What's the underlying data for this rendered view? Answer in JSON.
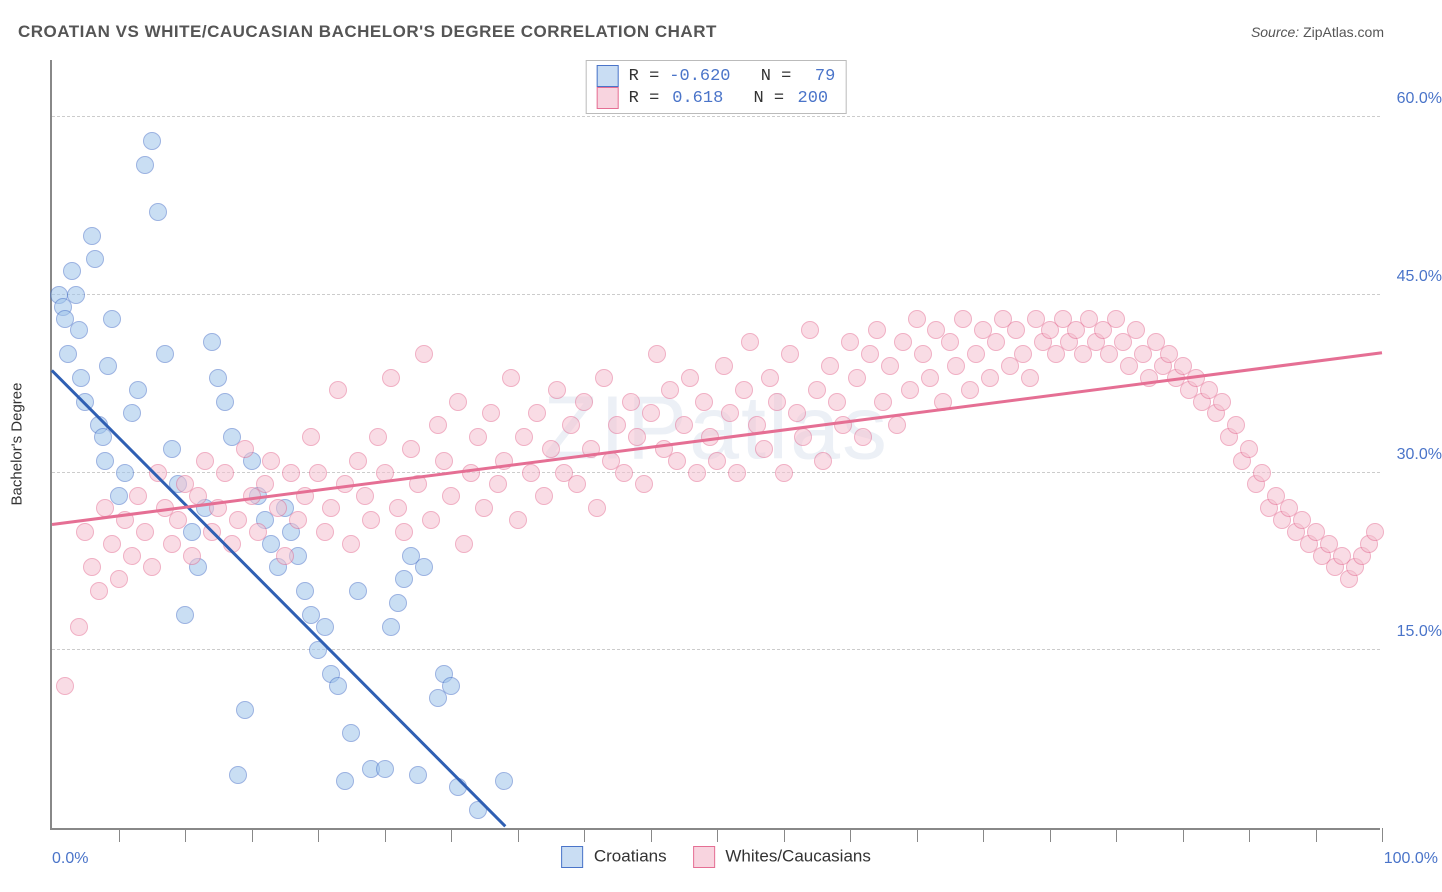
{
  "title": "CROATIAN VS WHITE/CAUCASIAN BACHELOR'S DEGREE CORRELATION CHART",
  "source_label": "Source:",
  "source_link": "ZipAtlas.com",
  "watermark": "ZIPatlas",
  "chart": {
    "type": "scatter",
    "ylabel": "Bachelor's Degree",
    "xlim": [
      0,
      100
    ],
    "ylim": [
      0,
      65
    ],
    "x_min_label": "0.0%",
    "x_max_label": "100.0%",
    "y_ticks": [
      15,
      30,
      45,
      60
    ],
    "y_tick_labels": [
      "15.0%",
      "30.0%",
      "45.0%",
      "60.0%"
    ],
    "x_minor_ticks_count": 20,
    "background_color": "#ffffff",
    "grid_color": "#cccccc",
    "axis_color": "#888888",
    "tick_label_color": "#4a74c9",
    "marker_radius": 9,
    "marker_opacity": 0.55,
    "series": [
      {
        "name": "Croatians",
        "legend_label": "Croatians",
        "r_label": "R =",
        "r_value": "-0.620",
        "n_label": "N =",
        "n_value": "79",
        "marker_fill": "#9ec4eb",
        "marker_stroke": "#4a74c9",
        "swatch_fill": "#c9ddf3",
        "swatch_stroke": "#4a74c9",
        "trend": {
          "x1": 0,
          "y1": 38.5,
          "x2": 35,
          "y2": -1,
          "color": "#2f5fb3",
          "width": 2.5
        },
        "points": [
          [
            0.5,
            45
          ],
          [
            0.8,
            44
          ],
          [
            1,
            43
          ],
          [
            1.2,
            40
          ],
          [
            1.5,
            47
          ],
          [
            1.8,
            45
          ],
          [
            2,
            42
          ],
          [
            2.2,
            38
          ],
          [
            2.5,
            36
          ],
          [
            3,
            50
          ],
          [
            3.2,
            48
          ],
          [
            3.5,
            34
          ],
          [
            3.8,
            33
          ],
          [
            4,
            31
          ],
          [
            4.2,
            39
          ],
          [
            4.5,
            43
          ],
          [
            5,
            28
          ],
          [
            5.5,
            30
          ],
          [
            6,
            35
          ],
          [
            6.5,
            37
          ],
          [
            7,
            56
          ],
          [
            7.5,
            58
          ],
          [
            8,
            52
          ],
          [
            8.5,
            40
          ],
          [
            9,
            32
          ],
          [
            9.5,
            29
          ],
          [
            10,
            18
          ],
          [
            10.5,
            25
          ],
          [
            11,
            22
          ],
          [
            11.5,
            27
          ],
          [
            12,
            41
          ],
          [
            12.5,
            38
          ],
          [
            13,
            36
          ],
          [
            13.5,
            33
          ],
          [
            14,
            4.5
          ],
          [
            14.5,
            10
          ],
          [
            15,
            31
          ],
          [
            15.5,
            28
          ],
          [
            16,
            26
          ],
          [
            16.5,
            24
          ],
          [
            17,
            22
          ],
          [
            17.5,
            27
          ],
          [
            18,
            25
          ],
          [
            18.5,
            23
          ],
          [
            19,
            20
          ],
          [
            19.5,
            18
          ],
          [
            20,
            15
          ],
          [
            20.5,
            17
          ],
          [
            21,
            13
          ],
          [
            21.5,
            12
          ],
          [
            22,
            4
          ],
          [
            22.5,
            8
          ],
          [
            23,
            20
          ],
          [
            24,
            5
          ],
          [
            25,
            5
          ],
          [
            25.5,
            17
          ],
          [
            26,
            19
          ],
          [
            26.5,
            21
          ],
          [
            27,
            23
          ],
          [
            27.5,
            4.5
          ],
          [
            28,
            22
          ],
          [
            29,
            11
          ],
          [
            29.5,
            13
          ],
          [
            30,
            12
          ],
          [
            30.5,
            3.5
          ],
          [
            32,
            1.5
          ],
          [
            34,
            4
          ]
        ]
      },
      {
        "name": "Whites/Caucasians",
        "legend_label": "Whites/Caucasians",
        "r_label": "R =",
        "r_value": "0.618",
        "n_label": "N =",
        "n_value": "200",
        "marker_fill": "#f5c1d0",
        "marker_stroke": "#e56f94",
        "swatch_fill": "#f8d4df",
        "swatch_stroke": "#e56f94",
        "trend": {
          "x1": 0,
          "y1": 25.5,
          "x2": 100,
          "y2": 40,
          "color": "#e56f94",
          "width": 2.5
        },
        "points": [
          [
            1,
            12
          ],
          [
            2,
            17
          ],
          [
            2.5,
            25
          ],
          [
            3,
            22
          ],
          [
            3.5,
            20
          ],
          [
            4,
            27
          ],
          [
            4.5,
            24
          ],
          [
            5,
            21
          ],
          [
            5.5,
            26
          ],
          [
            6,
            23
          ],
          [
            6.5,
            28
          ],
          [
            7,
            25
          ],
          [
            7.5,
            22
          ],
          [
            8,
            30
          ],
          [
            8.5,
            27
          ],
          [
            9,
            24
          ],
          [
            9.5,
            26
          ],
          [
            10,
            29
          ],
          [
            10.5,
            23
          ],
          [
            11,
            28
          ],
          [
            11.5,
            31
          ],
          [
            12,
            25
          ],
          [
            12.5,
            27
          ],
          [
            13,
            30
          ],
          [
            13.5,
            24
          ],
          [
            14,
            26
          ],
          [
            14.5,
            32
          ],
          [
            15,
            28
          ],
          [
            15.5,
            25
          ],
          [
            16,
            29
          ],
          [
            16.5,
            31
          ],
          [
            17,
            27
          ],
          [
            17.5,
            23
          ],
          [
            18,
            30
          ],
          [
            18.5,
            26
          ],
          [
            19,
            28
          ],
          [
            19.5,
            33
          ],
          [
            20,
            30
          ],
          [
            20.5,
            25
          ],
          [
            21,
            27
          ],
          [
            21.5,
            37
          ],
          [
            22,
            29
          ],
          [
            22.5,
            24
          ],
          [
            23,
            31
          ],
          [
            23.5,
            28
          ],
          [
            24,
            26
          ],
          [
            24.5,
            33
          ],
          [
            25,
            30
          ],
          [
            25.5,
            38
          ],
          [
            26,
            27
          ],
          [
            26.5,
            25
          ],
          [
            27,
            32
          ],
          [
            27.5,
            29
          ],
          [
            28,
            40
          ],
          [
            28.5,
            26
          ],
          [
            29,
            34
          ],
          [
            29.5,
            31
          ],
          [
            30,
            28
          ],
          [
            30.5,
            36
          ],
          [
            31,
            24
          ],
          [
            31.5,
            30
          ],
          [
            32,
            33
          ],
          [
            32.5,
            27
          ],
          [
            33,
            35
          ],
          [
            33.5,
            29
          ],
          [
            34,
            31
          ],
          [
            34.5,
            38
          ],
          [
            35,
            26
          ],
          [
            35.5,
            33
          ],
          [
            36,
            30
          ],
          [
            36.5,
            35
          ],
          [
            37,
            28
          ],
          [
            37.5,
            32
          ],
          [
            38,
            37
          ],
          [
            38.5,
            30
          ],
          [
            39,
            34
          ],
          [
            39.5,
            29
          ],
          [
            40,
            36
          ],
          [
            40.5,
            32
          ],
          [
            41,
            27
          ],
          [
            41.5,
            38
          ],
          [
            42,
            31
          ],
          [
            42.5,
            34
          ],
          [
            43,
            30
          ],
          [
            43.5,
            36
          ],
          [
            44,
            33
          ],
          [
            44.5,
            29
          ],
          [
            45,
            35
          ],
          [
            45.5,
            40
          ],
          [
            46,
            32
          ],
          [
            46.5,
            37
          ],
          [
            47,
            31
          ],
          [
            47.5,
            34
          ],
          [
            48,
            38
          ],
          [
            48.5,
            30
          ],
          [
            49,
            36
          ],
          [
            49.5,
            33
          ],
          [
            50,
            31
          ],
          [
            50.5,
            39
          ],
          [
            51,
            35
          ],
          [
            51.5,
            30
          ],
          [
            52,
            37
          ],
          [
            52.5,
            41
          ],
          [
            53,
            34
          ],
          [
            53.5,
            32
          ],
          [
            54,
            38
          ],
          [
            54.5,
            36
          ],
          [
            55,
            30
          ],
          [
            55.5,
            40
          ],
          [
            56,
            35
          ],
          [
            56.5,
            33
          ],
          [
            57,
            42
          ],
          [
            57.5,
            37
          ],
          [
            58,
            31
          ],
          [
            58.5,
            39
          ],
          [
            59,
            36
          ],
          [
            59.5,
            34
          ],
          [
            60,
            41
          ],
          [
            60.5,
            38
          ],
          [
            61,
            33
          ],
          [
            61.5,
            40
          ],
          [
            62,
            42
          ],
          [
            62.5,
            36
          ],
          [
            63,
            39
          ],
          [
            63.5,
            34
          ],
          [
            64,
            41
          ],
          [
            64.5,
            37
          ],
          [
            65,
            43
          ],
          [
            65.5,
            40
          ],
          [
            66,
            38
          ],
          [
            66.5,
            42
          ],
          [
            67,
            36
          ],
          [
            67.5,
            41
          ],
          [
            68,
            39
          ],
          [
            68.5,
            43
          ],
          [
            69,
            37
          ],
          [
            69.5,
            40
          ],
          [
            70,
            42
          ],
          [
            70.5,
            38
          ],
          [
            71,
            41
          ],
          [
            71.5,
            43
          ],
          [
            72,
            39
          ],
          [
            72.5,
            42
          ],
          [
            73,
            40
          ],
          [
            73.5,
            38
          ],
          [
            74,
            43
          ],
          [
            74.5,
            41
          ],
          [
            75,
            42
          ],
          [
            75.5,
            40
          ],
          [
            76,
            43
          ],
          [
            76.5,
            41
          ],
          [
            77,
            42
          ],
          [
            77.5,
            40
          ],
          [
            78,
            43
          ],
          [
            78.5,
            41
          ],
          [
            79,
            42
          ],
          [
            79.5,
            40
          ],
          [
            80,
            43
          ],
          [
            80.5,
            41
          ],
          [
            81,
            39
          ],
          [
            81.5,
            42
          ],
          [
            82,
            40
          ],
          [
            82.5,
            38
          ],
          [
            83,
            41
          ],
          [
            83.5,
            39
          ],
          [
            84,
            40
          ],
          [
            84.5,
            38
          ],
          [
            85,
            39
          ],
          [
            85.5,
            37
          ],
          [
            86,
            38
          ],
          [
            86.5,
            36
          ],
          [
            87,
            37
          ],
          [
            87.5,
            35
          ],
          [
            88,
            36
          ],
          [
            88.5,
            33
          ],
          [
            89,
            34
          ],
          [
            89.5,
            31
          ],
          [
            90,
            32
          ],
          [
            90.5,
            29
          ],
          [
            91,
            30
          ],
          [
            91.5,
            27
          ],
          [
            92,
            28
          ],
          [
            92.5,
            26
          ],
          [
            93,
            27
          ],
          [
            93.5,
            25
          ],
          [
            94,
            26
          ],
          [
            94.5,
            24
          ],
          [
            95,
            25
          ],
          [
            95.5,
            23
          ],
          [
            96,
            24
          ],
          [
            96.5,
            22
          ],
          [
            97,
            23
          ],
          [
            97.5,
            21
          ],
          [
            98,
            22
          ],
          [
            98.5,
            23
          ],
          [
            99,
            24
          ],
          [
            99.5,
            25
          ]
        ]
      }
    ]
  }
}
